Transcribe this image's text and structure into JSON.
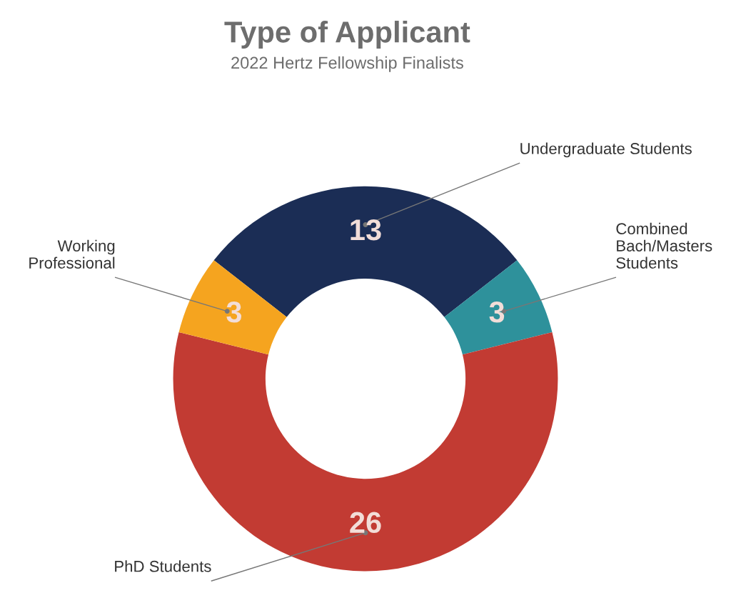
{
  "chart_data": {
    "type": "donut",
    "title": "Type of Applicant",
    "subtitle": "2022 Hertz Fellowship Finalists",
    "categories": [
      "Undergraduate Students",
      "Combined\nBach/Masters\nStudents",
      "PhD Students",
      "Working\nProfessional"
    ],
    "values": [
      13,
      3,
      26,
      3
    ],
    "colors": [
      "#1b2d55",
      "#2e919b",
      "#c23b33",
      "#f5a41f"
    ],
    "data_labels": true,
    "legend": false
  }
}
